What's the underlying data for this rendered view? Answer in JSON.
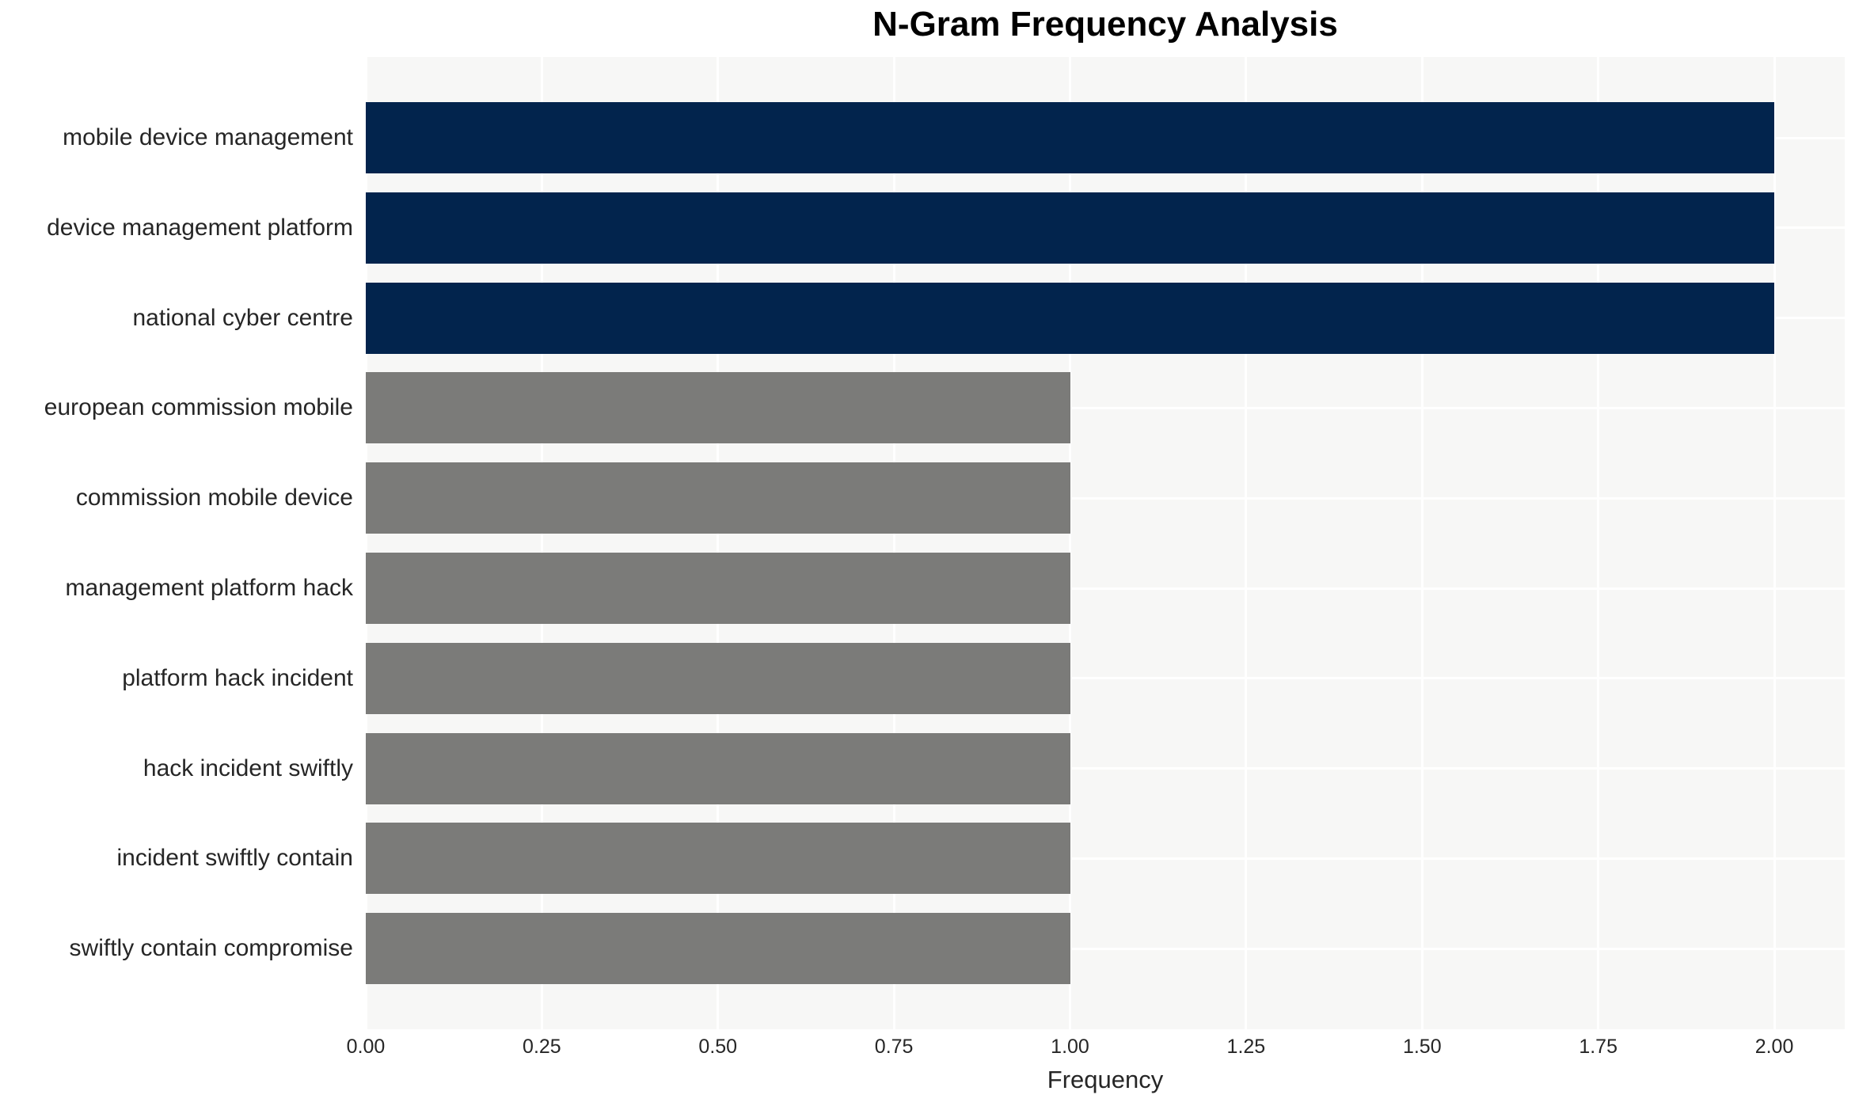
{
  "chart_data": {
    "type": "bar",
    "orientation": "horizontal",
    "title": "N-Gram Frequency Analysis",
    "xlabel": "Frequency",
    "ylabel": "",
    "xlim": [
      0,
      2.1
    ],
    "xtick_values": [
      0,
      0.25,
      0.5,
      0.75,
      1.0,
      1.25,
      1.5,
      1.75,
      2.0
    ],
    "xtick_labels": [
      "0.00",
      "0.25",
      "0.50",
      "0.75",
      "1.00",
      "1.25",
      "1.50",
      "1.75",
      "2.00"
    ],
    "grid": true,
    "legend": false,
    "categories": [
      "mobile device management",
      "device management platform",
      "national cyber centre",
      "european commission mobile",
      "commission mobile device",
      "management platform hack",
      "platform hack incident",
      "hack incident swiftly",
      "incident swiftly contain",
      "swiftly contain compromise"
    ],
    "values": [
      2,
      2,
      2,
      1,
      1,
      1,
      1,
      1,
      1,
      1
    ],
    "bar_colors": [
      "#02244d",
      "#02244d",
      "#02244d",
      "#7b7b79",
      "#7b7b79",
      "#7b7b79",
      "#7b7b79",
      "#7b7b79",
      "#7b7b79",
      "#7b7b79"
    ],
    "colors": {
      "highlight_bar": "#02244d",
      "default_bar": "#7b7b79",
      "plot_background": "#f7f7f6",
      "gridline": "#ffffff",
      "tick_text": "#262626",
      "title_text": "#000000"
    }
  }
}
